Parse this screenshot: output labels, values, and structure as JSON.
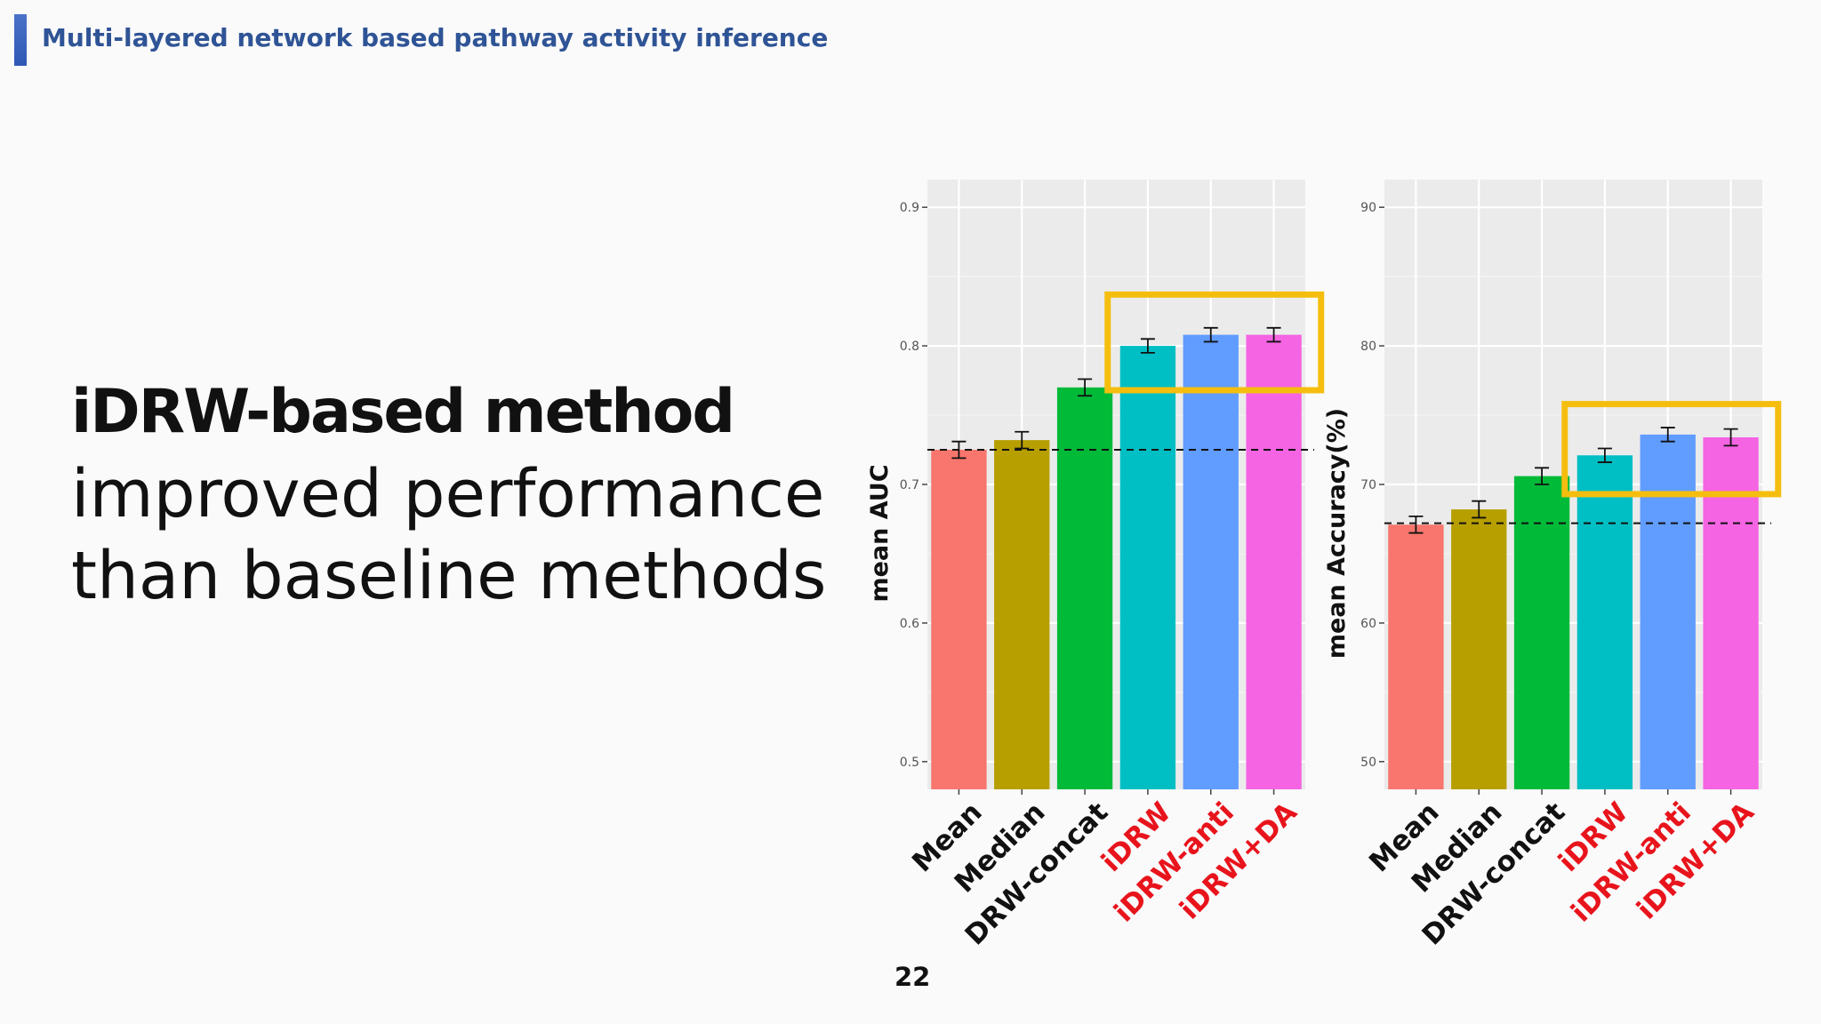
{
  "slide": {
    "title": "Multi-layered network based pathway activity inference",
    "headline_bold": "iDRW-based method",
    "headline_line2": "improved performance",
    "headline_line3": "than baseline methods",
    "page_number": "22"
  },
  "colors": {
    "title": "#2f5496",
    "highlight_box": "#f5be0f",
    "highlight_label": "#e8141c",
    "panel_bg": "#ebebeb",
    "grid": "#ffffff"
  },
  "chart_data": [
    {
      "type": "bar",
      "title": "",
      "xlabel": "",
      "ylabel": "mean AUC",
      "ylim": [
        0.48,
        0.92
      ],
      "yticks": [
        0.5,
        0.6,
        0.7,
        0.8,
        0.9
      ],
      "ytick_labels": [
        "0.5",
        "0.6",
        "0.7",
        "0.8",
        "0.9"
      ],
      "categories": [
        "Mean",
        "Median",
        "DRW-concat",
        "iDRW",
        "iDRW-anti",
        "iDRW+DA"
      ],
      "values": [
        0.725,
        0.732,
        0.77,
        0.8,
        0.808,
        0.808
      ],
      "errors": [
        0.006,
        0.006,
        0.006,
        0.005,
        0.005,
        0.005
      ],
      "bar_colors": [
        "#f8766d",
        "#b79f00",
        "#00ba38",
        "#00bfc4",
        "#619cff",
        "#f564e3"
      ],
      "highlighted_categories": [
        "iDRW",
        "iDRW-anti",
        "iDRW+DA"
      ],
      "reference_line": 0.725,
      "grid": true,
      "highlight_box": {
        "categories": [
          "iDRW",
          "iDRW-anti",
          "iDRW+DA"
        ],
        "y_range": [
          0.768,
          0.837
        ]
      }
    },
    {
      "type": "bar",
      "title": "",
      "xlabel": "",
      "ylabel": "mean Accuracy(%)",
      "ylim": [
        48,
        92
      ],
      "yticks": [
        50,
        60,
        70,
        80,
        90
      ],
      "ytick_labels": [
        "50",
        "60",
        "70",
        "80",
        "90"
      ],
      "categories": [
        "Mean",
        "Median",
        "DRW-concat",
        "iDRW",
        "iDRW-anti",
        "iDRW+DA"
      ],
      "values": [
        67.1,
        68.2,
        70.6,
        72.1,
        73.6,
        73.4
      ],
      "errors": [
        0.6,
        0.6,
        0.6,
        0.5,
        0.5,
        0.6
      ],
      "bar_colors": [
        "#f8766d",
        "#b79f00",
        "#00ba38",
        "#00bfc4",
        "#619cff",
        "#f564e3"
      ],
      "highlighted_categories": [
        "iDRW",
        "iDRW-anti",
        "iDRW+DA"
      ],
      "reference_line": 67.2,
      "grid": true,
      "highlight_box": {
        "categories": [
          "iDRW",
          "iDRW-anti",
          "iDRW+DA"
        ],
        "y_range": [
          69.3,
          75.8
        ]
      }
    }
  ]
}
